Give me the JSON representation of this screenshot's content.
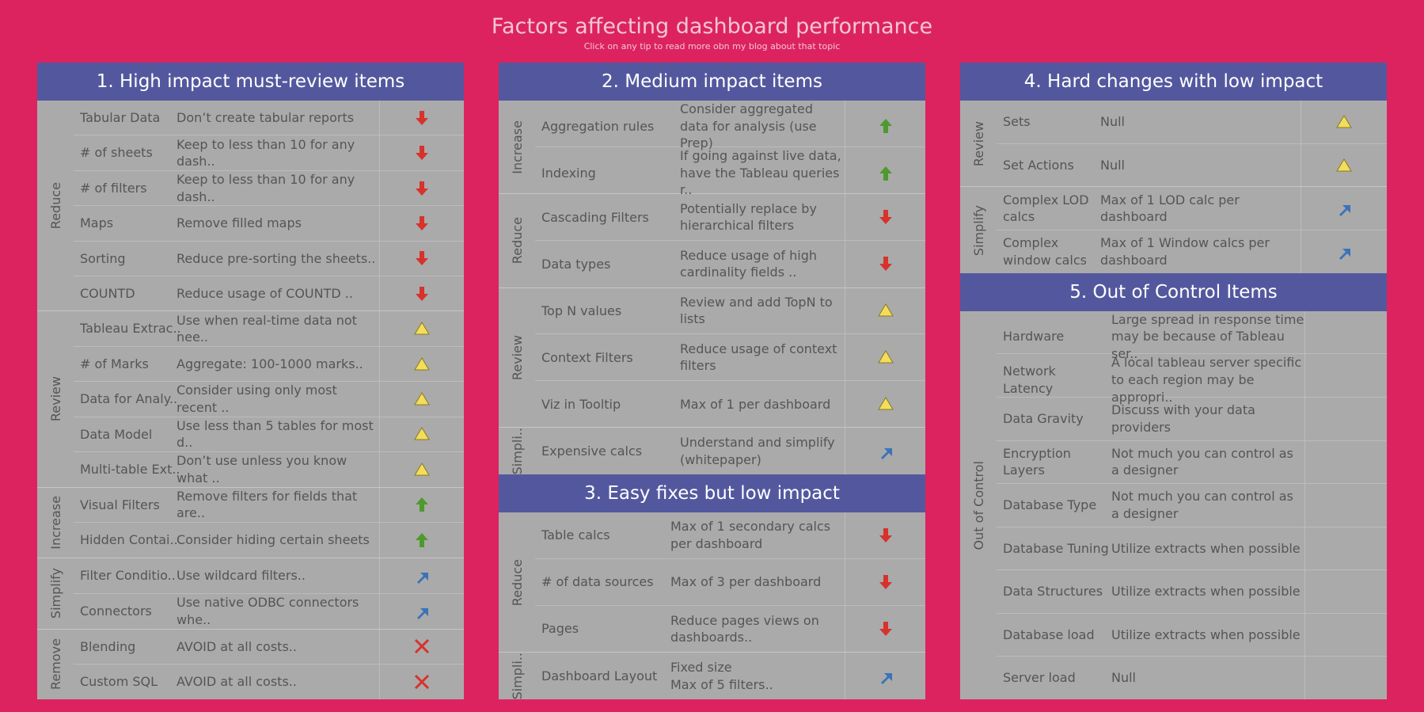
{
  "title": "Factors affecting dashboard performance",
  "subtitle": "Click on any tip to read more obn my blog about that topic",
  "panels": [
    {
      "title": "1. High impact must-review items",
      "groups": [
        {
          "label": "Reduce",
          "rows": [
            {
              "item": "Tabular Data",
              "tip": "Don’t create tabular reports",
              "icon": "down"
            },
            {
              "item": "# of sheets",
              "tip": "Keep to less than 10 for any dash..",
              "icon": "down"
            },
            {
              "item": "# of filters",
              "tip": "Keep to less than 10 for any dash..",
              "icon": "down"
            },
            {
              "item": "Maps",
              "tip": "Remove filled maps",
              "icon": "down"
            },
            {
              "item": "Sorting",
              "tip": "Reduce pre-sorting the sheets..",
              "icon": "down"
            },
            {
              "item": "COUNTD",
              "tip": "Reduce usage of COUNTD ..",
              "icon": "down"
            }
          ]
        },
        {
          "label": "Review",
          "rows": [
            {
              "item": "Tableau Extrac..",
              "tip": "Use when real-time data not nee..",
              "icon": "triangle"
            },
            {
              "item": "# of Marks",
              "tip": "Aggregate: 100-1000 marks..",
              "icon": "triangle"
            },
            {
              "item": "Data for Analy..",
              "tip": "Consider using only most recent ..",
              "icon": "triangle"
            },
            {
              "item": "Data Model",
              "tip": "Use less than 5 tables for most d..",
              "icon": "triangle"
            },
            {
              "item": "Multi-table Ext..",
              "tip": "Don’t use unless you know what ..",
              "icon": "triangle"
            }
          ]
        },
        {
          "label": "Increase",
          "rows": [
            {
              "item": "Visual Filters",
              "tip": "Remove filters for fields that are..",
              "icon": "up"
            },
            {
              "item": "Hidden Contai..",
              "tip": "Consider hiding certain sheets",
              "icon": "up"
            }
          ]
        },
        {
          "label": "Simplify",
          "rows": [
            {
              "item": "Filter Conditio..",
              "tip": "Use wildcard filters..",
              "icon": "diagonal"
            },
            {
              "item": "Connectors",
              "tip": "Use native ODBC connectors whe..",
              "icon": "diagonal"
            }
          ]
        },
        {
          "label": "Remove",
          "rows": [
            {
              "item": "Blending",
              "tip": "AVOID at all costs..",
              "icon": "cross"
            },
            {
              "item": "Custom SQL",
              "tip": "AVOID at all costs..",
              "icon": "cross"
            }
          ]
        }
      ]
    },
    {
      "title": "2. Medium impact items",
      "groups": [
        {
          "label": "Increase",
          "rows": [
            {
              "item": "Aggregation rules",
              "tip": "Consider aggregated data for analysis (use Prep)",
              "icon": "up"
            },
            {
              "item": "Indexing",
              "tip": "If going against live data, have the Tableau queries r..",
              "icon": "up"
            }
          ]
        },
        {
          "label": "Reduce",
          "rows": [
            {
              "item": "Cascading Filters",
              "tip": "Potentially replace by hierarchical filters",
              "icon": "down"
            },
            {
              "item": "Data types",
              "tip": "Reduce usage of high cardinality fields ..",
              "icon": "down"
            }
          ]
        },
        {
          "label": "Review",
          "rows": [
            {
              "item": "Top N values",
              "tip": "Review and add TopN to lists",
              "icon": "triangle"
            },
            {
              "item": "Context Filters",
              "tip": "Reduce usage of context filters",
              "icon": "triangle"
            },
            {
              "item": "Viz in Tooltip",
              "tip": "Max of 1 per dashboard",
              "icon": "triangle"
            }
          ]
        },
        {
          "label": "Simpli..",
          "rows": [
            {
              "item": "Expensive calcs",
              "tip": "Understand and simplify (whitepaper)",
              "icon": "diagonal"
            }
          ]
        }
      ]
    },
    {
      "title": "3. Easy fixes but low impact",
      "groups": [
        {
          "label": "Reduce",
          "rows": [
            {
              "item": "Table calcs",
              "tip": "Max of 1 secondary calcs per dashboard",
              "icon": "down"
            },
            {
              "item": "# of data sources",
              "tip": "Max of 3 per dashboard",
              "icon": "down"
            },
            {
              "item": "Pages",
              "tip": "Reduce pages views on dashboards..",
              "icon": "down"
            }
          ]
        },
        {
          "label": "Simpli..",
          "rows": [
            {
              "item": "Dashboard Layout",
              "tip": "Fixed size\nMax of 5 filters..",
              "icon": "diagonal"
            }
          ]
        }
      ]
    },
    {
      "title": "4. Hard changes with low impact",
      "groups": [
        {
          "label": "Review",
          "rows": [
            {
              "item": "Sets",
              "tip": "Null",
              "icon": "triangle"
            },
            {
              "item": "Set Actions",
              "tip": "Null",
              "icon": "triangle"
            }
          ]
        },
        {
          "label": "Simplify",
          "rows": [
            {
              "item": "Complex LOD calcs",
              "tip": "Max of 1 LOD calc per dashboard",
              "icon": "diagonal"
            },
            {
              "item": "Complex window calcs",
              "tip": "Max of 1 Window calcs per dashboard",
              "icon": "diagonal"
            }
          ]
        }
      ]
    },
    {
      "title": "5. Out of Control Items",
      "groups": [
        {
          "label": "Out of Control",
          "rows": [
            {
              "item": "Hardware",
              "tip": "Large spread in response time may be because of Tableau ser.."
            },
            {
              "item": "Network Latency",
              "tip": "A local tableau server specific to each region may be appropri.."
            },
            {
              "item": "Data Gravity",
              "tip": "Discuss with your data providers"
            },
            {
              "item": "Encryption Layers",
              "tip": "Not much you can control as a designer"
            },
            {
              "item": "Database Type",
              "tip": "Not much you can control as a designer"
            },
            {
              "item": "Database Tuning",
              "tip": "Utilize extracts when possible"
            },
            {
              "item": "Data Structures",
              "tip": "Utilize extracts when possible"
            },
            {
              "item": "Database load",
              "tip": "Utilize extracts when possible"
            },
            {
              "item": "Server load",
              "tip": "Null"
            }
          ]
        }
      ]
    }
  ]
}
